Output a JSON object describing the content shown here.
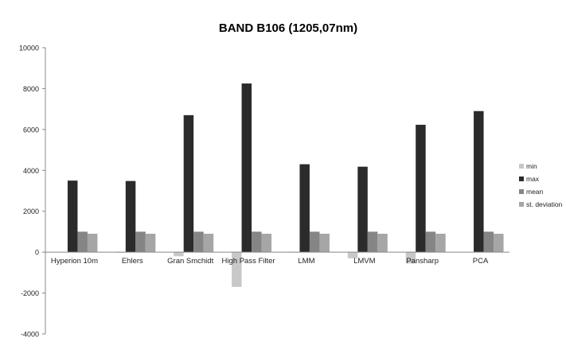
{
  "chart_data": {
    "type": "bar",
    "title": "BAND B106 (1205,07nm)",
    "xlabel": "",
    "ylabel": "",
    "ylim": [
      -4000,
      10000
    ],
    "yticks": [
      -4000,
      -2000,
      0,
      2000,
      4000,
      6000,
      8000,
      10000
    ],
    "grid": false,
    "legend_position": "right",
    "categories": [
      "Hyperion 10m",
      "Ehlers",
      "Gran Smchidt",
      "High Pass Filter",
      "LMM",
      "LMVM",
      "Pansharp",
      "PCA"
    ],
    "series": [
      {
        "name": "min",
        "color": "#c8c8c8",
        "values": [
          0,
          -30,
          -200,
          -1700,
          -20,
          -300,
          -550,
          0
        ]
      },
      {
        "name": "max",
        "color": "#2b2b2b",
        "values": [
          3500,
          3480,
          6700,
          8250,
          4300,
          4180,
          6230,
          6900
        ]
      },
      {
        "name": "mean",
        "color": "#858585",
        "values": [
          1000,
          1000,
          1000,
          1000,
          1000,
          1000,
          1000,
          1000
        ]
      },
      {
        "name": "st. deviation",
        "color": "#a6a6a6",
        "values": [
          900,
          900,
          900,
          900,
          900,
          900,
          900,
          900
        ]
      }
    ]
  }
}
